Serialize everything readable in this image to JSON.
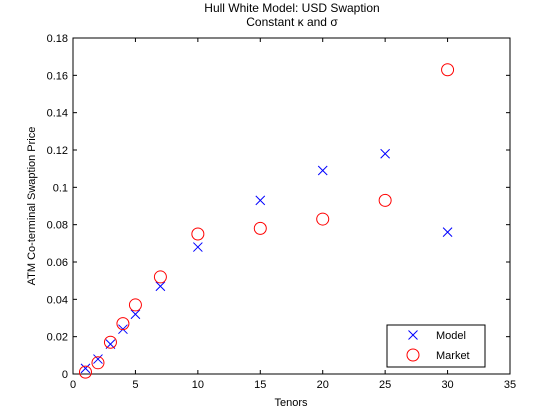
{
  "chart_data": {
    "type": "scatter",
    "title": "Hull White Model: USD Swaption",
    "subtitle": "Constant κ and σ",
    "xlabel": "Tenors",
    "ylabel": "ATM Co-terminal Swaption Price",
    "xlim": [
      0,
      35
    ],
    "ylim": [
      0,
      0.18
    ],
    "xticks": [
      "0",
      "5",
      "10",
      "15",
      "20",
      "25",
      "30",
      "35"
    ],
    "yticks": [
      "0",
      "0.02",
      "0.04",
      "0.06",
      "0.08",
      "0.1",
      "0.12",
      "0.14",
      "0.16",
      "0.18"
    ],
    "grid": false,
    "legend_position": "bottom-right",
    "series": [
      {
        "name": "Model",
        "marker": "x",
        "color": "#0000ff",
        "x": [
          1,
          2,
          3,
          4,
          5,
          7,
          10,
          15,
          20,
          25,
          30
        ],
        "y": [
          0.003,
          0.008,
          0.016,
          0.024,
          0.032,
          0.047,
          0.068,
          0.093,
          0.109,
          0.118,
          0.076
        ]
      },
      {
        "name": "Market",
        "marker": "o",
        "color": "#ff0000",
        "x": [
          1,
          2,
          3,
          4,
          5,
          7,
          10,
          15,
          20,
          25,
          30
        ],
        "y": [
          0.001,
          0.006,
          0.017,
          0.027,
          0.037,
          0.052,
          0.075,
          0.078,
          0.083,
          0.093,
          0.163
        ]
      }
    ]
  }
}
